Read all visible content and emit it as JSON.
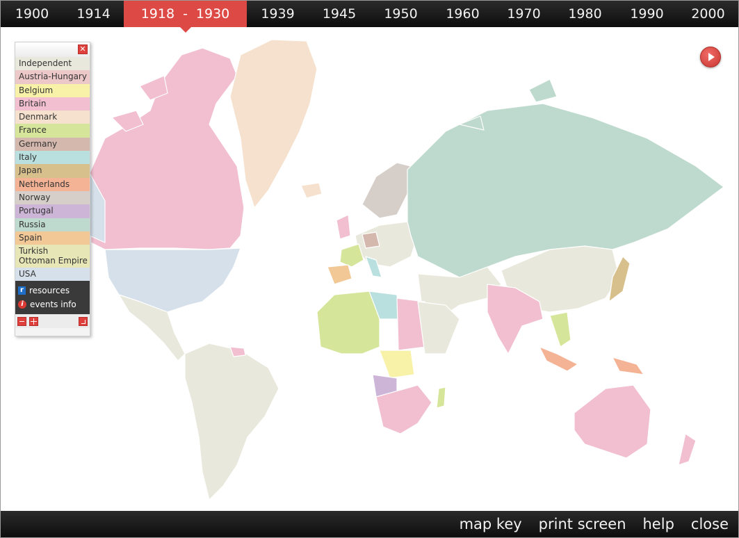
{
  "timeline": {
    "years": [
      "1900",
      "1914",
      "1939",
      "1945",
      "1950",
      "1960",
      "1970",
      "1980",
      "1990",
      "2000"
    ],
    "active_start": "1918",
    "active_sep": "-",
    "active_end": "1930"
  },
  "legend": {
    "items": [
      {
        "label": "Independent",
        "color": "#e9e8dc"
      },
      {
        "label": "Austria-Hungary",
        "color": "#ecc8c8"
      },
      {
        "label": "Belgium",
        "color": "#f7f2a8"
      },
      {
        "label": "Britain",
        "color": "#f2bfd0"
      },
      {
        "label": "Denmark",
        "color": "#f5e1cd"
      },
      {
        "label": "France",
        "color": "#d5e59a"
      },
      {
        "label": "Germany",
        "color": "#d4b8ad"
      },
      {
        "label": "Italy",
        "color": "#b9e0de"
      },
      {
        "label": "Japan",
        "color": "#d8c08c"
      },
      {
        "label": "Netherlands",
        "color": "#f4b395"
      },
      {
        "label": "Norway",
        "color": "#d6cfc9"
      },
      {
        "label": "Portugal",
        "color": "#cdb5d8"
      },
      {
        "label": "Russia",
        "color": "#bed9cd"
      },
      {
        "label": "Spain",
        "color": "#f2c896"
      },
      {
        "label": "Turkish\nOttoman Empire",
        "color": "#e7e6b6"
      },
      {
        "label": "USA",
        "color": "#d6e0ea"
      }
    ],
    "resources_label": "resources",
    "events_label": "events info"
  },
  "bottom": {
    "map_key": "map key",
    "print_screen": "print screen",
    "help": "help",
    "close": "close"
  }
}
